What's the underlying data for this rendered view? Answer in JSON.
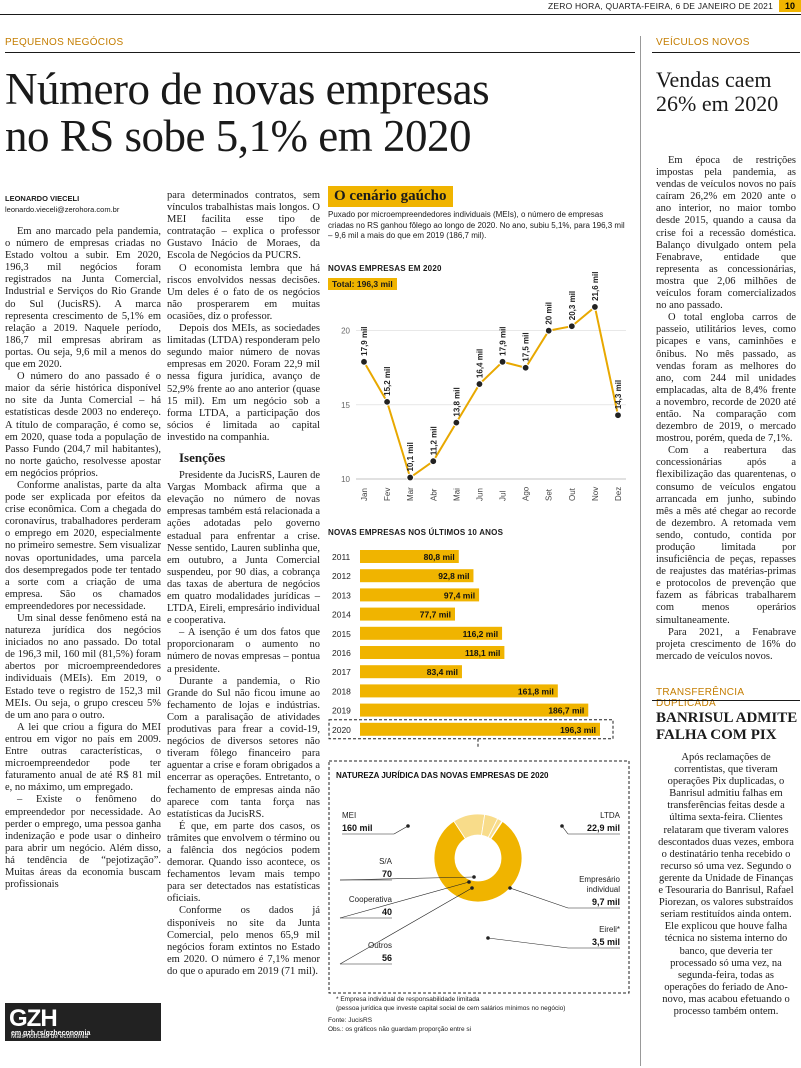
{
  "header": {
    "dateline": "ZERO HORA, QUARTA-FEIRA, 6 DE JANEIRO DE 2021",
    "page_number": "10"
  },
  "main": {
    "section": "PEQUENOS NEGÓCIOS",
    "headline_line1": "Número de novas empresas",
    "headline_line2": "no RS sobe 5,1% em 2020",
    "author": "LEONARDO VIECELI",
    "email": "leonardo.vieceli@zerohora.com.br",
    "col1": [
      "Em ano marcado pela pandemia, o número de empresas criadas no Estado voltou a subir. Em 2020, 196,3 mil negócios foram registrados na Junta Comercial, Industrial e Serviços do Rio Grande do Sul (JucisRS). A marca representa crescimento de 5,1% em relação a 2019. Naquele período, 186,7 mil empresas abriram as portas. Ou seja, 9,6 mil a menos do que em 2020.",
      "O número do ano passado é o maior da série histórica disponível no site da Junta Comercial – há estatísticas desde 2003 no endereço. A título de comparação, é como se, em 2020, quase toda a população de Passo Fundo (204,7 mil habitantes), no norte gaúcho, resolvesse apostar em negócios próprios.",
      "Conforme analistas, parte da alta pode ser explicada por efeitos da crise econômica. Com a chegada do coronavírus, trabalhadores perderam o emprego em 2020, especialmente no primeiro semestre. Sem visualizar novas oportunidades, uma parcela dos desempregados pode ter tentado a sorte com a criação de uma empresa. São os chamados empreendedores por necessidade.",
      "Um sinal desse fenômeno está na natureza jurídica dos negócios iniciados no ano passado. Do total de 196,3 mil, 160 mil (81,5%) foram abertos por microempreendedores individuais (MEIs). Em 2019, o Estado teve o registro de 152,3 mil MEIs. Ou seja, o grupo cresceu 5% de um ano para o outro.",
      "A lei que criou a figura do MEI entrou em vigor no país em 2009. Entre outras características, o microempreendedor pode ter faturamento anual de até R$ 81 mil e, no máximo, um empregado.",
      "– Existe o fenômeno do empreendedor por necessidade. Ao perder o emprego, uma pessoa ganha indenização e pode usar o dinheiro para abrir um negócio. Além disso, há tendência de “pejotização”. Muitas áreas da economia buscam profissionais"
    ],
    "col2a": [
      "para determinados contratos, sem vínculos trabalhistas mais longos. O MEI facilita esse tipo de contratação – explica o professor Gustavo Inácio de Moraes, da Escola de Negócios da PUCRS.",
      "O economista lembra que há riscos envolvidos nessas decisões. Um deles é o fato de os negócios não prosperarem em muitas ocasiões, diz o professor.",
      "Depois dos MEIs, as sociedades limitadas (LTDA) responderam pelo segundo maior número de novas empresas em 2020. Foram 22,9 mil nessa figura jurídica, avanço de 52,9% frente ao ano anterior (quase 15 mil). Em um negócio sob a forma LTDA, a participação dos sócios é limitada ao capital investido na companhia."
    ],
    "subhead": "Isenções",
    "col2b": [
      "Presidente da JucisRS, Lauren de Vargas Momback afirma que a elevação no número de novas empresas também está relacionada a ações adotadas pelo governo estadual para enfrentar a crise. Nesse sentido, Lauren sublinha que, em outubro, a Junta Comercial suspendeu, por 90 dias, a cobrança das taxas de abertura de negócios em quatro modalidades jurídicas – LTDA, Eireli, empresário individual e cooperativa.",
      "– A isenção é um dos fatos que proporcionaram o aumento no número de novas empresas – pontua a presidente.",
      "Durante a pandemia, o Rio Grande do Sul não ficou imune ao fechamento de lojas e indústrias. Com a paralisação de atividades produtivas para frear a covid-19, negócios de diversos setores não tiveram fôlego financeiro para aguentar a crise e foram obrigados a encerrar as operações. Entretanto, o fechamento de empresas ainda não aparece com tanta força nas estatísticas da JucisRS.",
      "É que, em parte dos casos, os trâmites que envolvem o término ou a falência dos negócios podem demorar. Quando isso acontece, os fechamentos levam mais tempo para ser detectados nas estatísticas oficiais.",
      "Conforme os dados já disponíveis no site da Junta Comercial, pelo menos 65,9 mil negócios foram extintos no Estado em 2020. O número é 7,1% menor do que o apurado em 2019 (71 mil)."
    ]
  },
  "gzh": {
    "logo": "GZH",
    "line1": "Mais notícias de economia",
    "line2": "em gzh.rs/gzheconomia"
  },
  "infographic": {
    "title": "O cenário gaúcho",
    "intro": "Puxado por microempreendedores individuais (MEIs), o número de empresas criadas no RS ganhou fôlego ao longo de 2020. No ano, subiu 5,1%, para 196,3 mil – 9,6 mil a mais do que em 2019 (186,7 mil).",
    "footnote1": "* Empresa individual de responsabilidade limitada",
    "footnote2": "(pessoa jurídica que investe capital social de cem salários mínimos no negócio)",
    "source": "Fonte: JucisRS",
    "obs": "Obs.: os gráficos não guardam proporção entre si"
  },
  "chart_data": [
    {
      "type": "line",
      "title": "NOVAS EMPRESAS EM 2020",
      "badge": "Total: 196,3 mil",
      "categories": [
        "Jan",
        "Fev",
        "Mar",
        "Abr",
        "Mai",
        "Jun",
        "Jul",
        "Ago",
        "Set",
        "Out",
        "Nov",
        "Dez"
      ],
      "values": [
        17.9,
        15.2,
        10.1,
        11.2,
        13.8,
        16.4,
        17.9,
        17.5,
        20,
        20.3,
        21.6,
        14.3
      ],
      "value_labels": [
        "17,9 mil",
        "15,2 mil",
        "10,1 mil",
        "11,2 mil",
        "13,8 mil",
        "16,4 mil",
        "17,9 mil",
        "17,5 mil",
        "20 mil",
        "20,3 mil",
        "21,6 mil",
        "14,3 mil"
      ],
      "yticks": [
        "10",
        "15",
        "20"
      ],
      "ylim": [
        10,
        22
      ],
      "grid": true,
      "color": "#e8a800"
    },
    {
      "type": "bar",
      "title": "NOVAS EMPRESAS NOS ÚLTIMOS 10 ANOS",
      "categories": [
        "2011",
        "2012",
        "2013",
        "2014",
        "2015",
        "2016",
        "2017",
        "2018",
        "2019",
        "2020"
      ],
      "values": [
        80.8,
        92.8,
        97.4,
        77.7,
        116.2,
        118.1,
        83.4,
        161.8,
        186.7,
        196.3
      ],
      "value_labels": [
        "80,8 mil",
        "92,8 mil",
        "97,4 mil",
        "77,7 mil",
        "116,2 mil",
        "118,1 mil",
        "83,4 mil",
        "161,8 mil",
        "186,7 mil",
        "196,3 mil"
      ],
      "color": "#f0b400"
    },
    {
      "type": "pie",
      "title": "NATUREZA JURÍDICA DAS NOVAS EMPRESAS DE 2020",
      "slices": [
        {
          "name": "MEI",
          "value_label": "160 mil",
          "value": 160000
        },
        {
          "name": "LTDA",
          "value_label": "22,9 mil",
          "value": 22900
        },
        {
          "name": "Empresário individual",
          "value_label": "9,7 mil",
          "value": 9700
        },
        {
          "name": "Eireli*",
          "value_label": "3,5 mil",
          "value": 3500
        },
        {
          "name": "Outros",
          "value_label": "56",
          "value": 56
        },
        {
          "name": "Cooperativa",
          "value_label": "40",
          "value": 40
        },
        {
          "name": "S/A",
          "value_label": "70",
          "value": 70
        }
      ],
      "colors": [
        "#f0b400",
        "#f8dc8a"
      ]
    }
  ],
  "sidebar": {
    "vehicles": {
      "section": "VEÍCULOS NOVOS",
      "headline": "Vendas caem 26% em 2020",
      "paragraphs": [
        "Em época de restrições impostas pela pandemia, as vendas de veículos novos no país caíram 26,2% em 2020 ante o ano interior, no maior tombo desde 2015, quando a causa da crise foi a recessão doméstica. Balanço divulgado ontem pela Fenabrave, entidade que representa as concessionárias, mostra que 2,06 milhões de veículos foram comercializados no ano passado.",
        "O total engloba carros de passeio, utilitários leves, como picapes e vans, caminhões e ônibus. No mês passado, as vendas foram as melhores do ano, com 244 mil unidades emplacadas, alta de 8,4% frente a novembro, recorde de 2020 até então. Na comparação com dezembro de 2019, o mercado mostrou, porém, queda de 7,1%.",
        "Com a reabertura das concessionárias após a flexibilização das quarentenas, o consumo de veículos engatou arrancada em junho, subindo mês a mês até chegar ao recorde de dezembro. A retomada vem sendo, contudo, contida por produção limitada por insuficiência de peças, repasses de reajustes das matérias-primas e protocolos de prevenção que fazem as fábricas trabalharem com menos operários simultaneamente.",
        "Para 2021, a Fenabrave projeta crescimento de 16% do mercado de veículos novos."
      ]
    },
    "bank": {
      "section": "TRANSFERÊNCIA DUPLICADA",
      "headline": "BANRISUL ADMITE FALHA COM PIX",
      "paragraphs": [
        "Após reclamações de correntistas, que tiveram operações Pix duplicadas, o Banrisul admitiu falhas em transferências feitas desde a última sexta-feira. Clientes relataram que tiveram valores descontados duas vezes, embora o destinatário tenha recebido o recurso só uma vez. Segundo o gerente da Unidade de Finanças e Tesouraria do Banrisul, Rafael Piorezan, os valores substraídos seriam restituídos ainda ontem.",
        "Ele explicou que houve falha técnica no sistema interno do banco, que deveria ter processado só uma vez, na segunda-feira, todas as operações do feriado de Ano-novo, mas acabou efetuando o processo também ontem."
      ]
    }
  }
}
